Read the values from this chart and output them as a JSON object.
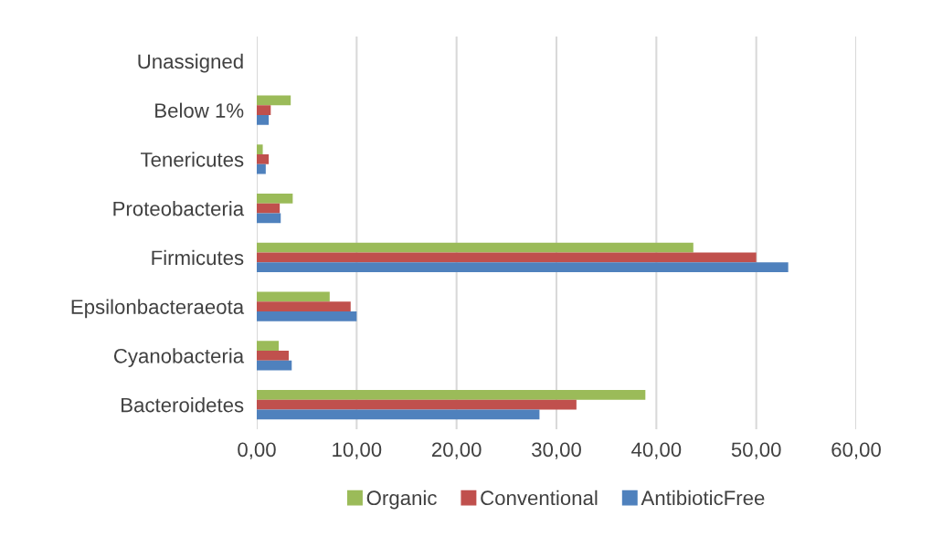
{
  "chart_data": {
    "type": "bar",
    "orientation": "horizontal",
    "categories": [
      "Unassigned",
      "Below 1%",
      "Tenericutes",
      "Proteobacteria",
      "Firmicutes",
      "Epsilonbacteraeota",
      "Cyanobacteria",
      "Bacteroidetes"
    ],
    "series": [
      {
        "name": "Organic",
        "color": "#9bbb59",
        "values": [
          0,
          3.4,
          0.6,
          3.6,
          43.7,
          7.3,
          2.2,
          38.9
        ]
      },
      {
        "name": "Conventional",
        "color": "#c0504d",
        "values": [
          0,
          1.4,
          1.2,
          2.3,
          50.0,
          9.4,
          3.2,
          32.0
        ]
      },
      {
        "name": "AntibioticFree",
        "color": "#4f81bd",
        "values": [
          0,
          1.2,
          0.9,
          2.4,
          53.2,
          10.0,
          3.5,
          28.3
        ]
      }
    ],
    "xlim": [
      0,
      60
    ],
    "xticks": [
      {
        "value": 0,
        "label": "0,00"
      },
      {
        "value": 10,
        "label": "10,00"
      },
      {
        "value": 20,
        "label": "20,00"
      },
      {
        "value": 30,
        "label": "30,00"
      },
      {
        "value": 40,
        "label": "40,00"
      },
      {
        "value": 50,
        "label": "50,00"
      },
      {
        "value": 60,
        "label": "60,00"
      }
    ],
    "grid": "x",
    "legend": "bottom"
  }
}
